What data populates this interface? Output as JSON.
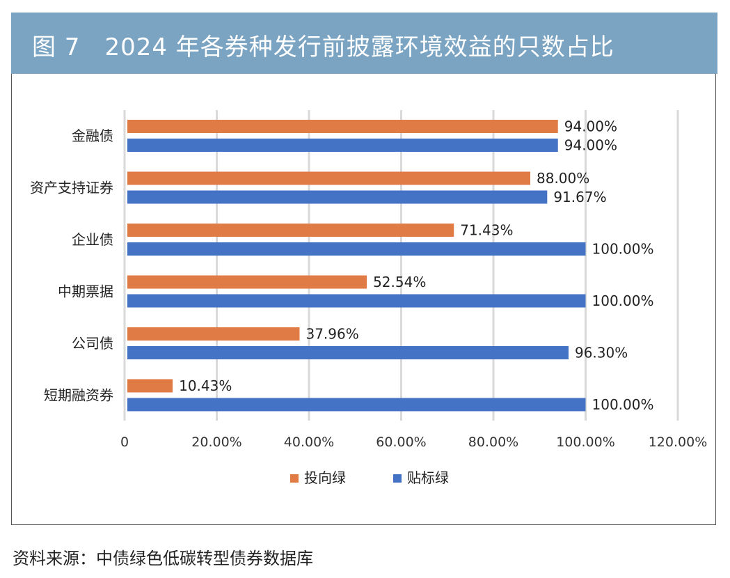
{
  "header": {
    "title": "图 7　2024 年各券种发行前披露环境效益的只数占比"
  },
  "source": "资料来源：中债绿色低碳转型债券数据库",
  "colors": {
    "series1": "#e07b45",
    "series2": "#4472c4",
    "grid": "#d9d9d9",
    "title_bg": "#7ba4c2"
  },
  "chart_data": {
    "type": "bar",
    "orientation": "horizontal",
    "title": "2024 年各券种发行前披露环境效益的只数占比",
    "categories": [
      "金融债",
      "资产支持证券",
      "企业债",
      "中期票据",
      "公司债",
      "短期融资券"
    ],
    "series": [
      {
        "name": "投向绿",
        "values": [
          94.0,
          88.0,
          71.43,
          52.54,
          37.96,
          10.43
        ],
        "labels": [
          "94.00%",
          "88.00%",
          "71.43%",
          "52.54%",
          "37.96%",
          "10.43%"
        ]
      },
      {
        "name": "贴标绿",
        "values": [
          94.0,
          91.67,
          100.0,
          100.0,
          96.3,
          100.0
        ],
        "labels": [
          "94.00%",
          "91.67%",
          "100.00%",
          "100.00%",
          "96.30%",
          "100.00%"
        ]
      }
    ],
    "xlim": [
      0,
      120
    ],
    "xticks": [
      0,
      20,
      40,
      60,
      80,
      100,
      120
    ],
    "xtick_labels": [
      "0",
      "20.00%",
      "40.00%",
      "60.00%",
      "80.00%",
      "100.00%",
      "120.00%"
    ],
    "xlabel": "",
    "ylabel": "",
    "grid": true,
    "legend": "bottom"
  }
}
